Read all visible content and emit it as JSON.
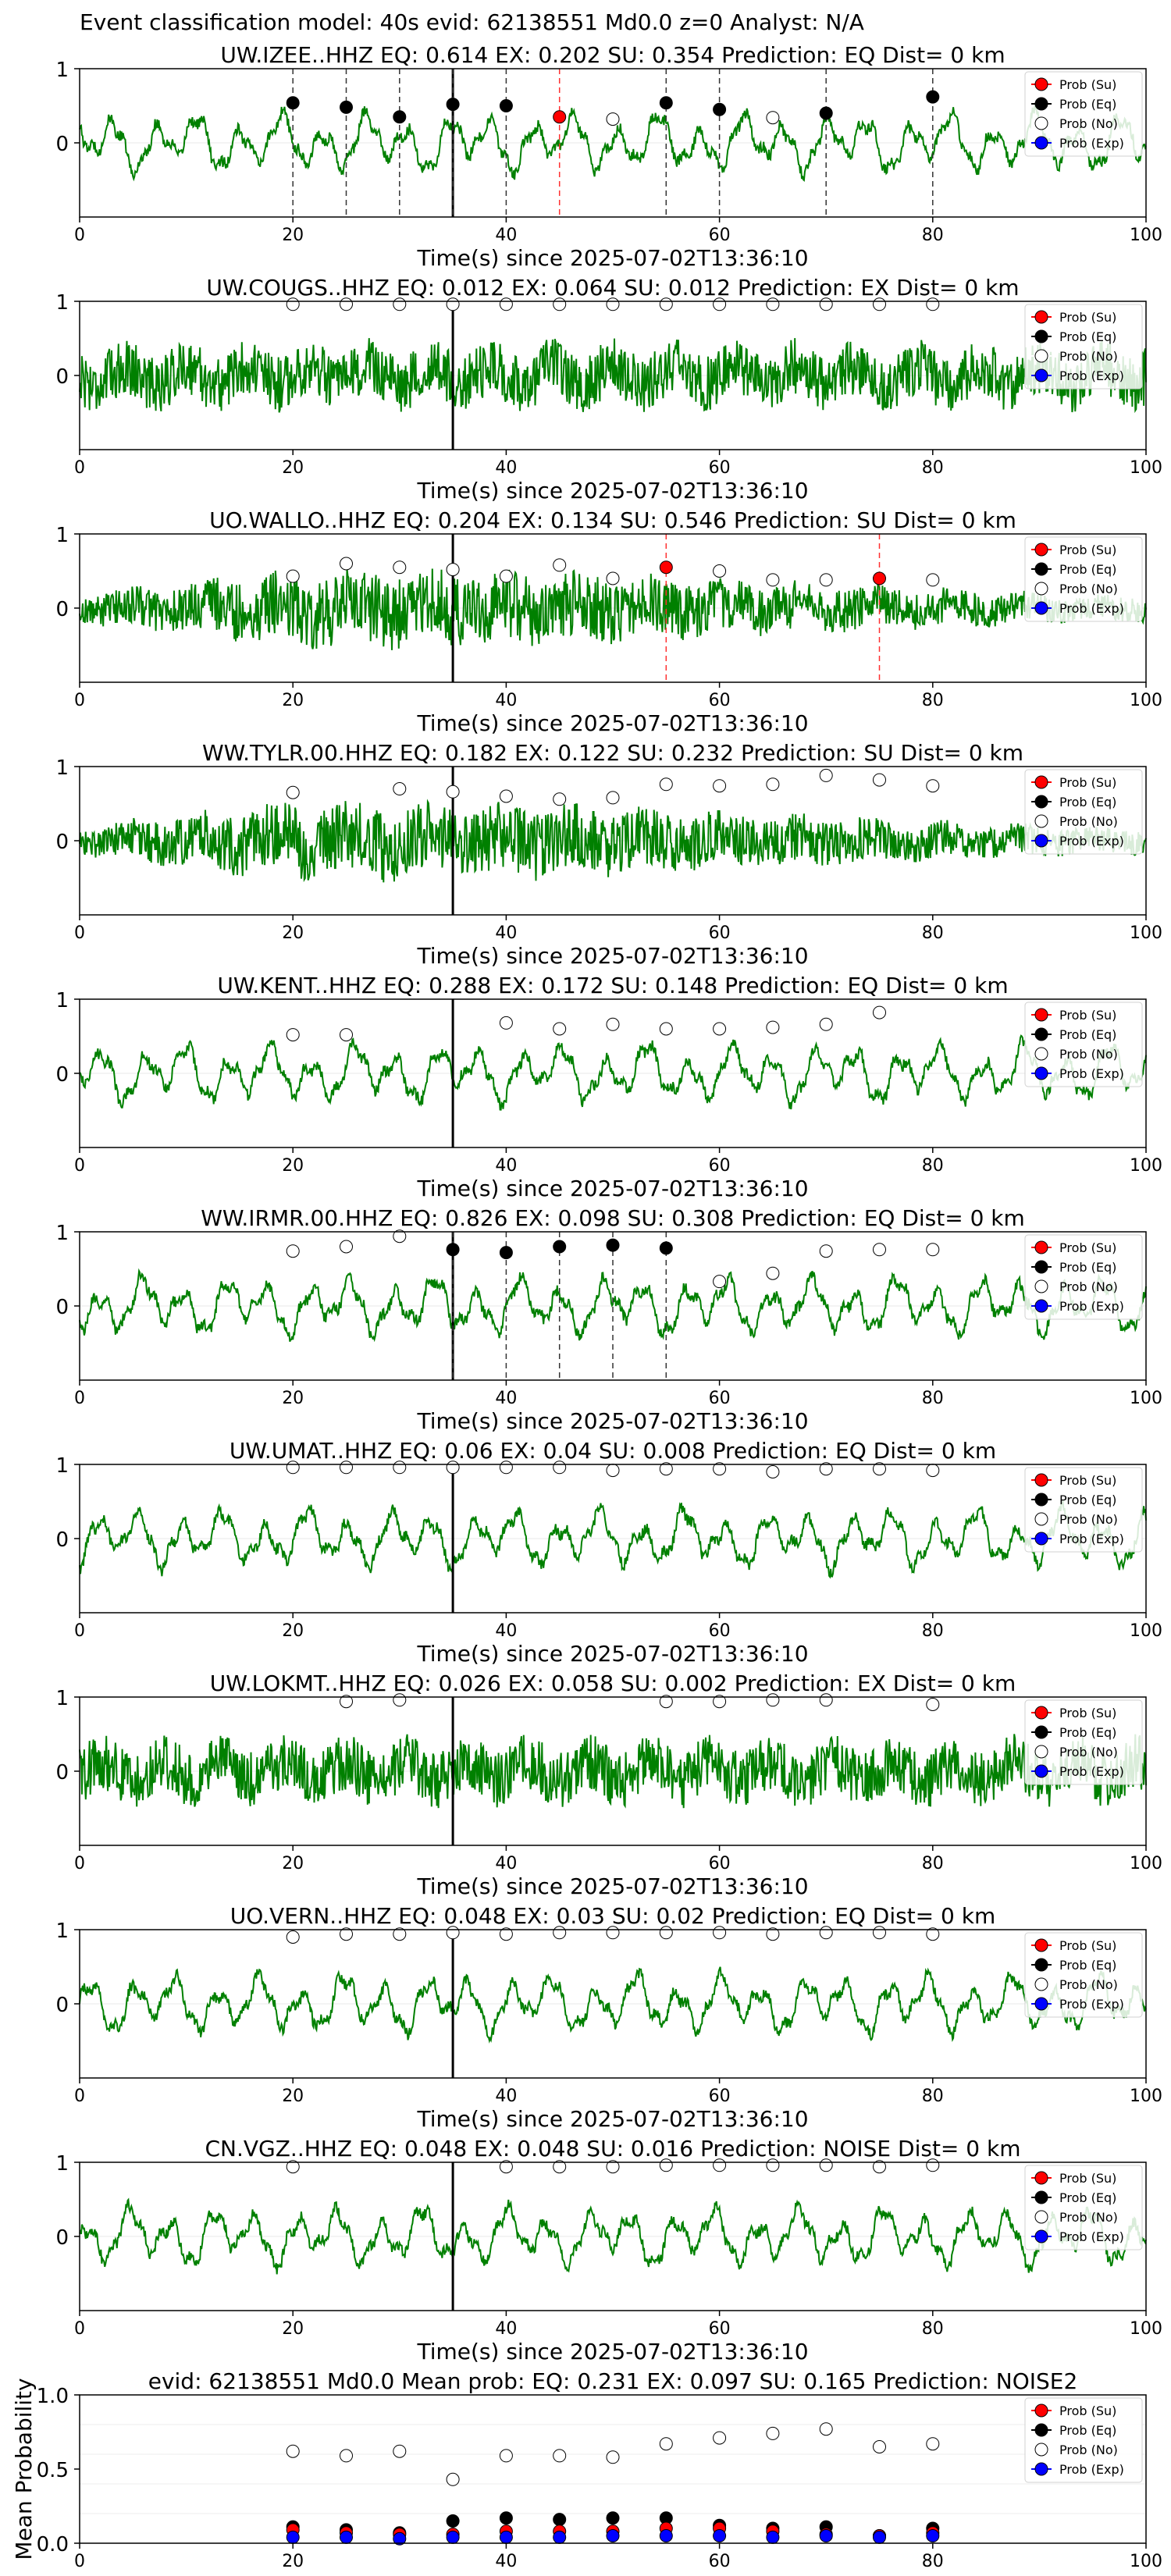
{
  "suptitle": "Event classification model: 40s evid: 62138551 Md0.0 z=0 Analyst: N/A",
  "legend": [
    "Prob (Su)",
    "Prob (Eq)",
    "Prob (No)",
    "Prob (Exp)"
  ],
  "colors": {
    "su": "#ff0000",
    "eq": "#000000",
    "no": "#ffffff",
    "exp": "#0000ff",
    "trace": "#008000"
  },
  "chart_data": {
    "type": "line",
    "x_label": "Time(s) since 2025-07-02T13:36:10",
    "xlim": [
      0,
      100
    ],
    "x_ticks": [
      0,
      20,
      40,
      60,
      80,
      100
    ],
    "trace_y_ticks": [
      0,
      1
    ],
    "origin_time_s": 35,
    "prob_times": [
      20,
      25,
      30,
      35,
      40,
      45,
      50,
      55,
      60,
      65,
      70,
      75,
      80
    ],
    "stations": [
      {
        "title": "UW.IZEE..HHZ   EQ: 0.614  EX: 0.202  SU: 0.354   Prediction: EQ    Dist= 0 km",
        "style": "slow",
        "points": [
          {
            "t": 20,
            "p": 0.54,
            "c": "eq"
          },
          {
            "t": 25,
            "p": 0.48,
            "c": "eq"
          },
          {
            "t": 30,
            "p": 0.35,
            "c": "eq"
          },
          {
            "t": 35,
            "p": 0.52,
            "c": "eq"
          },
          {
            "t": 40,
            "p": 0.5,
            "c": "eq"
          },
          {
            "t": 45,
            "p": 0.35,
            "c": "su"
          },
          {
            "t": 50,
            "p": 0.32,
            "c": "no"
          },
          {
            "t": 55,
            "p": 0.54,
            "c": "eq"
          },
          {
            "t": 60,
            "p": 0.45,
            "c": "eq"
          },
          {
            "t": 65,
            "p": 0.34,
            "c": "no"
          },
          {
            "t": 70,
            "p": 0.4,
            "c": "eq"
          },
          {
            "t": 80,
            "p": 0.62,
            "c": "eq"
          }
        ]
      },
      {
        "title": "UW.COUGS..HHZ   EQ: 0.012  EX: 0.064  SU: 0.012   Prediction: EX    Dist= 0 km",
        "style": "noisy",
        "points": [
          {
            "t": 20,
            "p": 0.96,
            "c": "no"
          },
          {
            "t": 25,
            "p": 0.96,
            "c": "no"
          },
          {
            "t": 30,
            "p": 0.96,
            "c": "no"
          },
          {
            "t": 35,
            "p": 0.96,
            "c": "no"
          },
          {
            "t": 40,
            "p": 0.96,
            "c": "no"
          },
          {
            "t": 45,
            "p": 0.96,
            "c": "no"
          },
          {
            "t": 50,
            "p": 0.96,
            "c": "no"
          },
          {
            "t": 55,
            "p": 0.96,
            "c": "no"
          },
          {
            "t": 60,
            "p": 0.96,
            "c": "no"
          },
          {
            "t": 65,
            "p": 0.96,
            "c": "no"
          },
          {
            "t": 70,
            "p": 0.96,
            "c": "no"
          },
          {
            "t": 75,
            "p": 0.96,
            "c": "no"
          },
          {
            "t": 80,
            "p": 0.96,
            "c": "no"
          }
        ]
      },
      {
        "title": "UO.WALLO..HHZ   EQ: 0.204  EX: 0.134  SU: 0.546   Prediction: SU    Dist= 0 km",
        "style": "burst",
        "points": [
          {
            "t": 20,
            "p": 0.43,
            "c": "no"
          },
          {
            "t": 25,
            "p": 0.6,
            "c": "no"
          },
          {
            "t": 30,
            "p": 0.55,
            "c": "no"
          },
          {
            "t": 35,
            "p": 0.52,
            "c": "no"
          },
          {
            "t": 40,
            "p": 0.43,
            "c": "no"
          },
          {
            "t": 45,
            "p": 0.58,
            "c": "no"
          },
          {
            "t": 50,
            "p": 0.4,
            "c": "no"
          },
          {
            "t": 55,
            "p": 0.55,
            "c": "su"
          },
          {
            "t": 60,
            "p": 0.5,
            "c": "no"
          },
          {
            "t": 65,
            "p": 0.38,
            "c": "no"
          },
          {
            "t": 70,
            "p": 0.38,
            "c": "no"
          },
          {
            "t": 75,
            "p": 0.4,
            "c": "su"
          },
          {
            "t": 80,
            "p": 0.38,
            "c": "no"
          }
        ]
      },
      {
        "title": "WW.TYLR.00.HHZ   EQ: 0.182  EX: 0.122  SU: 0.232   Prediction: SU    Dist= 0 km",
        "style": "burst",
        "points": [
          {
            "t": 20,
            "p": 0.65,
            "c": "no"
          },
          {
            "t": 30,
            "p": 0.7,
            "c": "no"
          },
          {
            "t": 35,
            "p": 0.66,
            "c": "no"
          },
          {
            "t": 40,
            "p": 0.6,
            "c": "no"
          },
          {
            "t": 45,
            "p": 0.56,
            "c": "no"
          },
          {
            "t": 50,
            "p": 0.58,
            "c": "no"
          },
          {
            "t": 55,
            "p": 0.76,
            "c": "no"
          },
          {
            "t": 60,
            "p": 0.74,
            "c": "no"
          },
          {
            "t": 65,
            "p": 0.76,
            "c": "no"
          },
          {
            "t": 70,
            "p": 0.88,
            "c": "no"
          },
          {
            "t": 75,
            "p": 0.82,
            "c": "no"
          },
          {
            "t": 80,
            "p": 0.74,
            "c": "no"
          }
        ]
      },
      {
        "title": "UW.KENT..HHZ   EQ: 0.288  EX: 0.172  SU: 0.148   Prediction: EQ    Dist= 0 km",
        "style": "slow",
        "points": [
          {
            "t": 20,
            "p": 0.52,
            "c": "no"
          },
          {
            "t": 25,
            "p": 0.52,
            "c": "no"
          },
          {
            "t": 40,
            "p": 0.68,
            "c": "no"
          },
          {
            "t": 45,
            "p": 0.6,
            "c": "no"
          },
          {
            "t": 50,
            "p": 0.66,
            "c": "no"
          },
          {
            "t": 55,
            "p": 0.6,
            "c": "no"
          },
          {
            "t": 60,
            "p": 0.6,
            "c": "no"
          },
          {
            "t": 65,
            "p": 0.62,
            "c": "no"
          },
          {
            "t": 70,
            "p": 0.66,
            "c": "no"
          },
          {
            "t": 75,
            "p": 0.82,
            "c": "no"
          }
        ]
      },
      {
        "title": "WW.IRMR.00.HHZ   EQ: 0.826  EX: 0.098  SU: 0.308   Prediction: EQ    Dist= 0 km",
        "style": "slow",
        "points": [
          {
            "t": 20,
            "p": 0.74,
            "c": "no"
          },
          {
            "t": 25,
            "p": 0.8,
            "c": "no"
          },
          {
            "t": 30,
            "p": 0.94,
            "c": "no"
          },
          {
            "t": 35,
            "p": 0.76,
            "c": "eq"
          },
          {
            "t": 40,
            "p": 0.72,
            "c": "eq"
          },
          {
            "t": 45,
            "p": 0.8,
            "c": "eq"
          },
          {
            "t": 50,
            "p": 0.82,
            "c": "eq"
          },
          {
            "t": 55,
            "p": 0.78,
            "c": "eq"
          },
          {
            "t": 60,
            "p": 0.33,
            "c": "no"
          },
          {
            "t": 65,
            "p": 0.44,
            "c": "no"
          },
          {
            "t": 70,
            "p": 0.74,
            "c": "no"
          },
          {
            "t": 75,
            "p": 0.76,
            "c": "no"
          },
          {
            "t": 80,
            "p": 0.76,
            "c": "no"
          }
        ]
      },
      {
        "title": "UW.UMAT..HHZ   EQ: 0.06  EX: 0.04  SU: 0.008   Prediction: EQ    Dist= 0 km",
        "style": "slow",
        "points": [
          {
            "t": 20,
            "p": 0.96,
            "c": "no"
          },
          {
            "t": 25,
            "p": 0.96,
            "c": "no"
          },
          {
            "t": 30,
            "p": 0.96,
            "c": "no"
          },
          {
            "t": 35,
            "p": 0.96,
            "c": "no"
          },
          {
            "t": 40,
            "p": 0.96,
            "c": "no"
          },
          {
            "t": 45,
            "p": 0.96,
            "c": "no"
          },
          {
            "t": 50,
            "p": 0.92,
            "c": "no"
          },
          {
            "t": 55,
            "p": 0.94,
            "c": "no"
          },
          {
            "t": 60,
            "p": 0.94,
            "c": "no"
          },
          {
            "t": 65,
            "p": 0.9,
            "c": "no"
          },
          {
            "t": 70,
            "p": 0.94,
            "c": "no"
          },
          {
            "t": 75,
            "p": 0.94,
            "c": "no"
          },
          {
            "t": 80,
            "p": 0.92,
            "c": "no"
          }
        ]
      },
      {
        "title": "UW.LOKMT..HHZ   EQ: 0.026  EX: 0.058  SU: 0.002   Prediction: EX    Dist= 0 km",
        "style": "noisy",
        "points": [
          {
            "t": 25,
            "p": 0.94,
            "c": "no"
          },
          {
            "t": 30,
            "p": 0.96,
            "c": "no"
          },
          {
            "t": 55,
            "p": 0.94,
            "c": "no"
          },
          {
            "t": 60,
            "p": 0.94,
            "c": "no"
          },
          {
            "t": 65,
            "p": 0.96,
            "c": "no"
          },
          {
            "t": 70,
            "p": 0.96,
            "c": "no"
          },
          {
            "t": 80,
            "p": 0.9,
            "c": "no"
          }
        ]
      },
      {
        "title": "UO.VERN..HHZ   EQ: 0.048  EX: 0.03  SU: 0.02   Prediction: EQ    Dist= 0 km",
        "style": "slow",
        "points": [
          {
            "t": 20,
            "p": 0.9,
            "c": "no"
          },
          {
            "t": 25,
            "p": 0.94,
            "c": "no"
          },
          {
            "t": 30,
            "p": 0.94,
            "c": "no"
          },
          {
            "t": 35,
            "p": 0.96,
            "c": "no"
          },
          {
            "t": 40,
            "p": 0.94,
            "c": "no"
          },
          {
            "t": 45,
            "p": 0.96,
            "c": "no"
          },
          {
            "t": 50,
            "p": 0.96,
            "c": "no"
          },
          {
            "t": 55,
            "p": 0.96,
            "c": "no"
          },
          {
            "t": 60,
            "p": 0.96,
            "c": "no"
          },
          {
            "t": 65,
            "p": 0.94,
            "c": "no"
          },
          {
            "t": 70,
            "p": 0.96,
            "c": "no"
          },
          {
            "t": 75,
            "p": 0.96,
            "c": "no"
          },
          {
            "t": 80,
            "p": 0.94,
            "c": "no"
          }
        ]
      },
      {
        "title": "CN.VGZ..HHZ   EQ: 0.048  EX: 0.048  SU: 0.016   Prediction: NOISE    Dist= 0 km",
        "style": "slow",
        "points": [
          {
            "t": 20,
            "p": 0.94,
            "c": "no"
          },
          {
            "t": 40,
            "p": 0.94,
            "c": "no"
          },
          {
            "t": 45,
            "p": 0.94,
            "c": "no"
          },
          {
            "t": 50,
            "p": 0.94,
            "c": "no"
          },
          {
            "t": 55,
            "p": 0.96,
            "c": "no"
          },
          {
            "t": 60,
            "p": 0.96,
            "c": "no"
          },
          {
            "t": 65,
            "p": 0.96,
            "c": "no"
          },
          {
            "t": 70,
            "p": 0.96,
            "c": "no"
          },
          {
            "t": 75,
            "p": 0.94,
            "c": "no"
          },
          {
            "t": 80,
            "p": 0.96,
            "c": "no"
          }
        ]
      }
    ],
    "summary": {
      "title": "evid: 62138551  Md0.0   Mean prob:   EQ: 0.231  EX: 0.097  SU: 0.165   Prediction: NOISE2",
      "ylabel": "Mean Probability",
      "ylim": [
        0,
        1
      ],
      "y_ticks": [
        0.0,
        0.5,
        1.0
      ],
      "x": [
        20,
        25,
        30,
        35,
        40,
        45,
        50,
        55,
        60,
        65,
        70,
        75,
        80
      ],
      "no": [
        0.62,
        0.59,
        0.62,
        0.43,
        0.59,
        0.59,
        0.58,
        0.67,
        0.71,
        0.74,
        0.77,
        0.65,
        0.67
      ],
      "eq": [
        0.11,
        0.09,
        0.07,
        0.15,
        0.17,
        0.16,
        0.17,
        0.17,
        0.12,
        0.1,
        0.11,
        0.05,
        0.1
      ],
      "su": [
        0.09,
        0.07,
        0.06,
        0.06,
        0.08,
        0.08,
        0.08,
        0.1,
        0.1,
        0.08,
        0.06,
        0.05,
        0.07
      ],
      "exp": [
        0.04,
        0.04,
        0.03,
        0.04,
        0.04,
        0.04,
        0.05,
        0.05,
        0.05,
        0.04,
        0.05,
        0.04,
        0.05
      ]
    }
  }
}
